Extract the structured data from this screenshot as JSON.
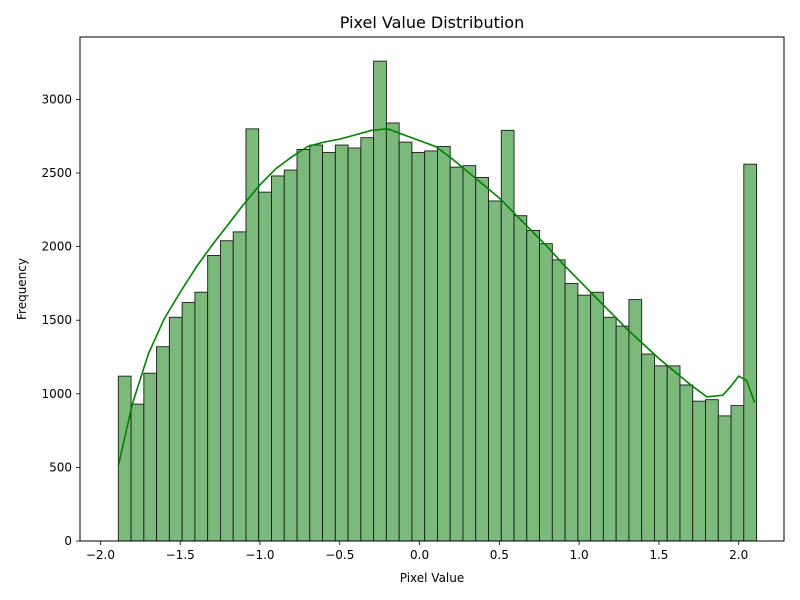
{
  "chart_data": {
    "type": "bar",
    "title": "Pixel Value Distribution",
    "xlabel": "Pixel Value",
    "ylabel": "Frequency",
    "xlim": [
      -2.128,
      2.284
    ],
    "ylim": [
      0,
      3424
    ],
    "x_ticks": [
      -2.0,
      -1.5,
      -1.0,
      -0.5,
      0.0,
      0.5,
      1.0,
      1.5,
      2.0
    ],
    "x_tick_labels": [
      "−2.0",
      "−1.5",
      "−1.0",
      "−0.5",
      "0.0",
      "0.5",
      "1.0",
      "1.5",
      "2.0"
    ],
    "y_ticks": [
      0,
      500,
      1000,
      1500,
      2000,
      2500,
      3000
    ],
    "y_tick_labels": [
      "0",
      "500",
      "1000",
      "1500",
      "2000",
      "2500",
      "3000"
    ],
    "bin_start": -1.8879,
    "bin_width": 0.08,
    "values": [
      1120,
      930,
      1140,
      1320,
      1520,
      1620,
      1690,
      1940,
      2040,
      2100,
      2800,
      2370,
      2480,
      2520,
      2660,
      2690,
      2640,
      2690,
      2670,
      2740,
      3260,
      2840,
      2710,
      2640,
      2650,
      2680,
      2540,
      2550,
      2470,
      2310,
      2790,
      2210,
      2110,
      2020,
      1910,
      1750,
      1670,
      1690,
      1520,
      1460,
      1640,
      1270,
      1190,
      1190,
      1060,
      950,
      960,
      850,
      920,
      2560
    ],
    "kde": {
      "x": [
        -1.888,
        -1.8,
        -1.7,
        -1.6,
        -1.5,
        -1.4,
        -1.3,
        -1.2,
        -1.1,
        -1.0,
        -0.9,
        -0.8,
        -0.7,
        -0.6,
        -0.5,
        -0.4,
        -0.3,
        -0.2,
        -0.1,
        0.0,
        0.1,
        0.2,
        0.3,
        0.4,
        0.5,
        0.6,
        0.7,
        0.8,
        0.9,
        1.0,
        1.1,
        1.2,
        1.3,
        1.4,
        1.5,
        1.6,
        1.7,
        1.8,
        1.9,
        1.95,
        2.0,
        2.05,
        2.1
      ],
      "y": [
        510,
        930,
        1270,
        1510,
        1690,
        1860,
        2010,
        2150,
        2290,
        2420,
        2530,
        2610,
        2680,
        2710,
        2730,
        2760,
        2790,
        2800,
        2760,
        2720,
        2680,
        2600,
        2510,
        2420,
        2330,
        2220,
        2110,
        2000,
        1880,
        1770,
        1660,
        1550,
        1440,
        1340,
        1240,
        1150,
        1060,
        980,
        990,
        1050,
        1120,
        1090,
        940
      ]
    },
    "bar_fill": "#7cba7c",
    "bar_edge": "#1a1a1a",
    "kde_color": "#008000",
    "grid": false
  }
}
